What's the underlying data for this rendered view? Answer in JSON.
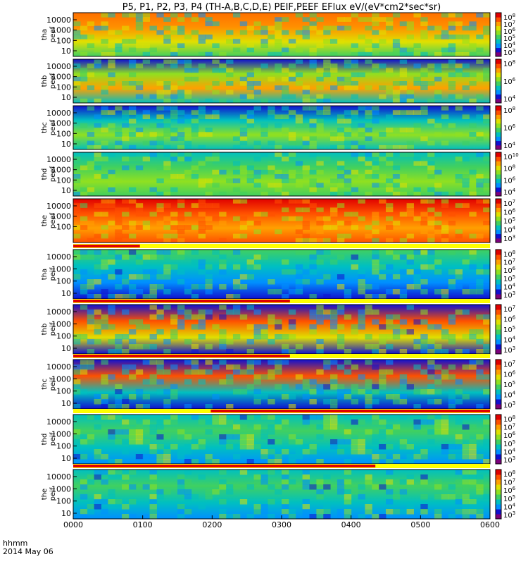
{
  "chart_data": {
    "type": "heatmap",
    "title": "P5, P1, P2, P3, P4 (TH-A,B,C,D,E) PEIF,PEEF EFlux eV/(eV*cm2*sec*sr)",
    "x_axis": {
      "label": "hhmm",
      "date": "2014 May 06",
      "tick_labels": [
        "0000",
        "0100",
        "0200",
        "0300",
        "0400",
        "0500",
        "0600"
      ],
      "range": [
        "00:00",
        "06:00"
      ]
    },
    "panels": [
      {
        "label_line1": "tha",
        "label_line2": "peef",
        "y_ticks": [
          "10000",
          "1000",
          "100",
          "10"
        ],
        "cbar_ticks": [
          "10^8",
          "10^7",
          "10^6",
          "10^5",
          "10^4",
          "10^3"
        ]
      },
      {
        "label_line1": "thb",
        "label_line2": "peef",
        "y_ticks": [
          "10000",
          "1000",
          "100",
          "10"
        ],
        "cbar_ticks": [
          "10^8",
          "10^6",
          "10^4"
        ]
      },
      {
        "label_line1": "thc",
        "label_line2": "peef",
        "y_ticks": [
          "10000",
          "1000",
          "100",
          "10"
        ],
        "cbar_ticks": [
          "10^8",
          "10^6",
          "10^4"
        ]
      },
      {
        "label_line1": "thd",
        "label_line2": "peef",
        "y_ticks": [
          "10000",
          "1000",
          "100",
          "10"
        ],
        "cbar_ticks": [
          "10^10",
          "10^8",
          "10^6",
          "10^4"
        ]
      },
      {
        "label_line1": "the",
        "label_line2": "peef",
        "y_ticks": [
          "10000",
          "1000",
          "100"
        ],
        "cbar_ticks": [
          "10^7",
          "10^6",
          "10^5",
          "10^4",
          "10^3"
        ]
      },
      {
        "label_line1": "tha",
        "label_line2": "peif",
        "y_ticks": [
          "10000",
          "1000",
          "100",
          "10"
        ],
        "cbar_ticks": [
          "10^8",
          "10^7",
          "10^6",
          "10^5",
          "10^4",
          "10^3"
        ]
      },
      {
        "label_line1": "thb",
        "label_line2": "peif",
        "y_ticks": [
          "10000",
          "1000",
          "100",
          "10"
        ],
        "cbar_ticks": [
          "10^7",
          "10^6",
          "10^5",
          "10^4",
          "10^3"
        ]
      },
      {
        "label_line1": "thc",
        "label_line2": "peif",
        "y_ticks": [
          "10000",
          "1000",
          "100",
          "10"
        ],
        "cbar_ticks": [
          "10^7",
          "10^6",
          "10^5",
          "10^4",
          "10^3"
        ]
      },
      {
        "label_line1": "thd",
        "label_line2": "peif",
        "y_ticks": [
          "10000",
          "1000",
          "100",
          "10"
        ],
        "cbar_ticks": [
          "10^8",
          "10^7",
          "10^6",
          "10^5",
          "10^4",
          "10^3"
        ]
      },
      {
        "label_line1": "the",
        "label_line2": "peif",
        "y_ticks": [
          "10000",
          "1000",
          "100",
          "10"
        ],
        "cbar_ticks": [
          "10^8",
          "10^7",
          "10^6",
          "10^5",
          "10^4",
          "10^3"
        ]
      }
    ],
    "mode_bars": [
      {
        "fraction_red_end": 0.16
      },
      {
        "fraction_red_end": 0.52
      },
      {
        "fraction_red_end": 0.52
      },
      {
        "fraction_red_end": 0.33,
        "red_after": true
      },
      {
        "fraction_red_end": 0.725
      }
    ],
    "colormap": [
      "#ffffff",
      "#7d007d",
      "#1010d0",
      "#0090ff",
      "#00c0c0",
      "#40d060",
      "#90e020",
      "#e0e000",
      "#ffa000",
      "#ff5000",
      "#e00000"
    ],
    "colors": {
      "mode_bar_red": "#e00000",
      "mode_bar_yellow": "#ffff00",
      "gap": "#ffffff"
    }
  }
}
